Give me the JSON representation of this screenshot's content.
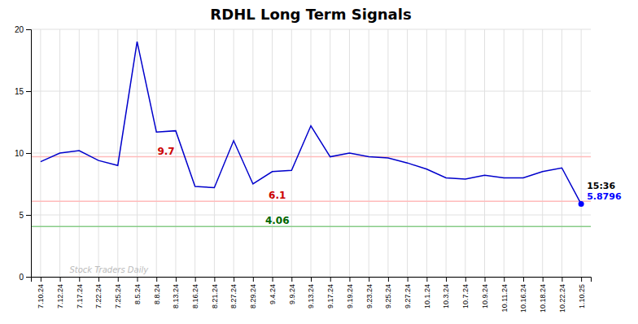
{
  "chart_data": {
    "type": "line",
    "title": "RDHL Long Term Signals",
    "categories": [
      "7.10.24",
      "7.12.24",
      "7.17.24",
      "7.22.24",
      "7.25.24",
      "8.5.24",
      "8.8.24",
      "8.13.24",
      "8.16.24",
      "8.21.24",
      "8.27.24",
      "8.29.24",
      "9.4.24",
      "9.9.24",
      "9.13.24",
      "9.17.24",
      "9.19.24",
      "9.23.24",
      "9.25.24",
      "9.27.24",
      "10.1.24",
      "10.3.24",
      "10.7.24",
      "10.9.24",
      "10.11.24",
      "10.16.24",
      "10.18.24",
      "10.22.24",
      "1.10.25"
    ],
    "values": [
      9.3,
      10.0,
      10.2,
      9.4,
      9.0,
      19.0,
      11.7,
      11.8,
      7.3,
      7.2,
      11.0,
      7.5,
      8.5,
      8.6,
      12.2,
      9.7,
      10.0,
      9.7,
      9.6,
      9.2,
      8.7,
      8.0,
      7.9,
      8.2,
      8.0,
      8.0,
      8.5,
      8.8,
      5.88
    ],
    "color": "#0000cc",
    "reference_lines": [
      {
        "value": 9.7,
        "label": "9.7",
        "color": "#ffbbbb",
        "label_color": "#cc0000"
      },
      {
        "value": 6.1,
        "label": "6.1",
        "color": "#ffbbbb",
        "label_color": "#cc0000"
      },
      {
        "value": 4.06,
        "label": "4.06",
        "color": "#88cc88",
        "label_color": "#006600"
      }
    ],
    "last_point": {
      "label": "15:36",
      "value_label": "5.8796",
      "color": "#0000ff"
    },
    "watermark": "Stock Traders Daily",
    "ylim": [
      0,
      20
    ],
    "yticks": [
      0,
      5,
      10,
      15,
      20
    ],
    "grid": true
  }
}
